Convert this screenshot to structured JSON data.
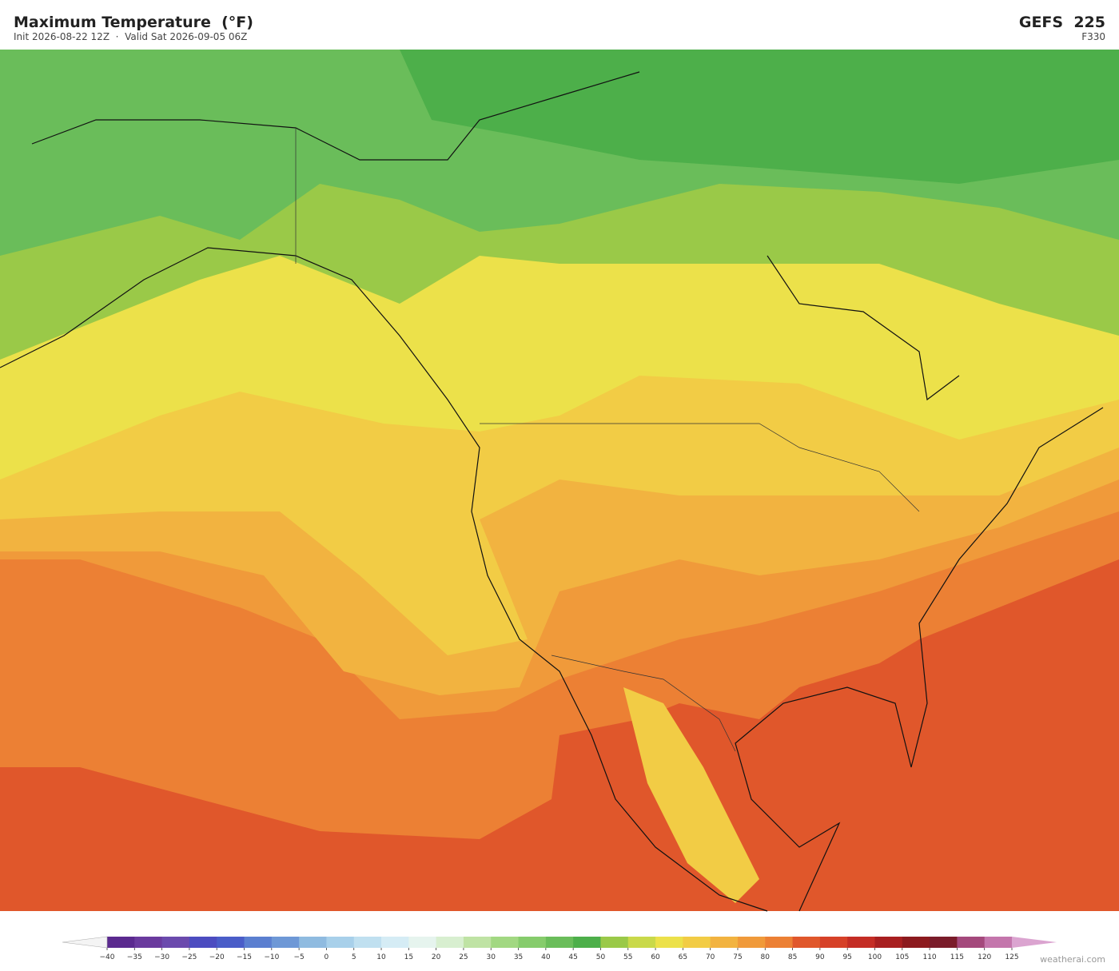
{
  "header": {
    "title": "Maximum Temperature  (°F)",
    "subtitle": "Init 2026-08-22 12Z  ·  Valid Sat 2026-09-05 06Z",
    "model": "GEFS  225",
    "step": "F330"
  },
  "colorbar": {
    "ticks": [
      {
        "value": -40,
        "label": "−40"
      },
      {
        "value": -35,
        "label": "−35"
      },
      {
        "value": -30,
        "label": "−30"
      },
      {
        "value": -25,
        "label": "−25"
      },
      {
        "value": -20,
        "label": "−20"
      },
      {
        "value": -15,
        "label": "−15"
      },
      {
        "value": -10,
        "label": "−10"
      },
      {
        "value": -5,
        "label": "−5"
      },
      0,
      5,
      10,
      15,
      20,
      25,
      30,
      35,
      40,
      45,
      50,
      55,
      60,
      65,
      70,
      75,
      80,
      85,
      90,
      95,
      100,
      105,
      110,
      115,
      120,
      125
    ],
    "colors": [
      "#5b2a8f",
      "#6a3a9e",
      "#6b4aad",
      "#4c4cc0",
      "#4a5dc8",
      "#5b7fd0",
      "#6e98d6",
      "#8fbbe0",
      "#a8d0ea",
      "#c0e0f0",
      "#d5ecf5",
      "#e6f4ee",
      "#d8efd0",
      "#bfe3a4",
      "#a2d882",
      "#86cc6c",
      "#6abd5a",
      "#4daf4a",
      "#9ac948",
      "#c9d94a",
      "#ece14a",
      "#f2cc45",
      "#f2b340",
      "#f09a3a",
      "#ec8034",
      "#e0572b",
      "#d64128",
      "#c42d25",
      "#a81f20",
      "#8c1a1e",
      "#7a1c2a",
      "#a4497c",
      "#c476ac"
    ],
    "under_color": "#f4f4f4",
    "over_color": "#dba4d0"
  },
  "footer": {
    "credit": "weatherai.com"
  }
}
